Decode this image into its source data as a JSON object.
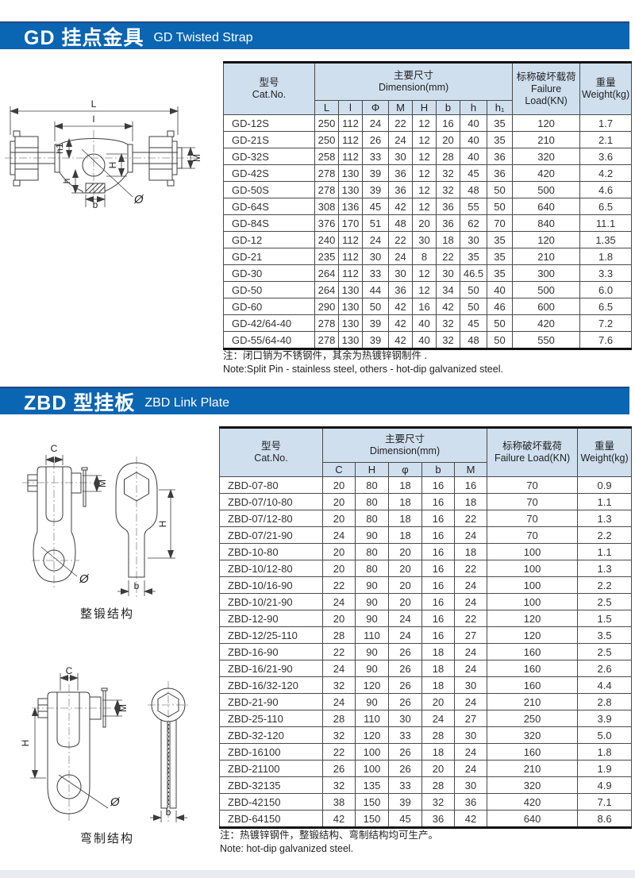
{
  "colors": {
    "banner_blue": "#0a65b2",
    "banner_edge": "#27477e",
    "table_header_fill": "#cfdfee",
    "footer_strip": "#e8ebef"
  },
  "gd": {
    "title_zh": "GD 挂点金具",
    "title_en": "GD Twisted Strap",
    "diagram": {
      "labels": {
        "L": "L",
        "l": "l",
        "h1": "h1",
        "H": "H",
        "h": "h",
        "b": "b",
        "M": "M",
        "phi": "Ø"
      }
    },
    "table": {
      "col_model_zh": "型号",
      "col_model_en": "Cat.No.",
      "col_dim_zh": "主要尺寸",
      "col_dim_en": "Dimension(mm)",
      "dim_cols": [
        "L",
        "l",
        "Φ",
        "M",
        "H",
        "b",
        "h",
        "h₁"
      ],
      "col_load_zh": "标称破坏载荷",
      "col_load_en1": "Failure",
      "col_load_en2": "Load(KN)",
      "col_weight_zh": "重量",
      "col_weight_en": "Weight(kg)",
      "rows": [
        {
          "model": "GD-12S",
          "dims": [
            "250",
            "112",
            "24",
            "22",
            "12",
            "16",
            "40",
            "35"
          ],
          "load": "120",
          "weight": "1.7"
        },
        {
          "model": "GD-21S",
          "dims": [
            "250",
            "112",
            "26",
            "24",
            "12",
            "20",
            "40",
            "35"
          ],
          "load": "210",
          "weight": "2.1"
        },
        {
          "model": "GD-32S",
          "dims": [
            "258",
            "112",
            "33",
            "30",
            "12",
            "28",
            "40",
            "36"
          ],
          "load": "320",
          "weight": "3.6"
        },
        {
          "model": "GD-42S",
          "dims": [
            "278",
            "130",
            "39",
            "36",
            "12",
            "32",
            "45",
            "36"
          ],
          "load": "420",
          "weight": "4.2"
        },
        {
          "model": "GD-50S",
          "dims": [
            "278",
            "130",
            "39",
            "36",
            "12",
            "32",
            "48",
            "50"
          ],
          "load": "500",
          "weight": "4.6"
        },
        {
          "model": "GD-64S",
          "dims": [
            "308",
            "136",
            "45",
            "42",
            "12",
            "36",
            "55",
            "50"
          ],
          "load": "640",
          "weight": "6.5"
        },
        {
          "model": "GD-84S",
          "dims": [
            "376",
            "170",
            "51",
            "48",
            "20",
            "36",
            "62",
            "70"
          ],
          "load": "840",
          "weight": "11.1"
        },
        {
          "model": "GD-12",
          "dims": [
            "240",
            "112",
            "24",
            "22",
            "30",
            "18",
            "30",
            "35"
          ],
          "load": "120",
          "weight": "1.35"
        },
        {
          "model": "GD-21",
          "dims": [
            "235",
            "112",
            "30",
            "24",
            "8",
            "22",
            "35",
            "35"
          ],
          "load": "210",
          "weight": "1.8"
        },
        {
          "model": "GD-30",
          "dims": [
            "264",
            "112",
            "33",
            "30",
            "12",
            "30",
            "46.5",
            "35"
          ],
          "load": "300",
          "weight": "3.3"
        },
        {
          "model": "GD-50",
          "dims": [
            "264",
            "130",
            "44",
            "36",
            "12",
            "34",
            "50",
            "40"
          ],
          "load": "500",
          "weight": "6.0"
        },
        {
          "model": "GD-60",
          "dims": [
            "290",
            "130",
            "50",
            "42",
            "16",
            "42",
            "50",
            "46"
          ],
          "load": "600",
          "weight": "6.5"
        },
        {
          "model": "GD-42/64-40",
          "dims": [
            "278",
            "130",
            "39",
            "42",
            "40",
            "32",
            "45",
            "50"
          ],
          "load": "420",
          "weight": "7.2"
        },
        {
          "model": "GD-55/64-40",
          "dims": [
            "278",
            "130",
            "39",
            "42",
            "40",
            "32",
            "48",
            "50"
          ],
          "load": "550",
          "weight": "7.6"
        }
      ]
    },
    "note_zh": "注：闭口销为不锈钢件，其余为热镀锌钢制件 .",
    "note_en": "Note:Split Pin - stainless steel, others - hot-dip galvanized steel."
  },
  "zbd": {
    "title_zh": "ZBD 型挂板",
    "title_en": "ZBD  Link Plate",
    "diagram1": {
      "caption": "整锻结构",
      "labels": {
        "C": "C",
        "M": "M",
        "H": "H",
        "b": "b",
        "phi": "Ø"
      }
    },
    "diagram2": {
      "caption": "弯制结构",
      "labels": {
        "C": "C",
        "M": "M",
        "H": "H",
        "b": "b",
        "phi": "Ø"
      }
    },
    "table": {
      "col_model_zh": "型号",
      "col_model_en": "Cat.No.",
      "col_dim_zh": "主要尺寸",
      "col_dim_en": "Dimension(mm)",
      "dim_cols": [
        "C",
        "H",
        "φ",
        "b",
        "M"
      ],
      "col_load_zh": "标称破坏载荷",
      "col_load_en": "Failure Load(KN)",
      "col_weight_zh": "重量",
      "col_weight_en": "Weight(kg)",
      "rows": [
        {
          "model": "ZBD-07-80",
          "dims": [
            "20",
            "80",
            "18",
            "16",
            "16"
          ],
          "load": "70",
          "weight": "0.9"
        },
        {
          "model": "ZBD-07/10-80",
          "dims": [
            "20",
            "80",
            "18",
            "16",
            "18"
          ],
          "load": "70",
          "weight": "1.1"
        },
        {
          "model": "ZBD-07/12-80",
          "dims": [
            "20",
            "80",
            "18",
            "16",
            "22"
          ],
          "load": "70",
          "weight": "1.3"
        },
        {
          "model": "ZBD-07/21-90",
          "dims": [
            "24",
            "90",
            "18",
            "16",
            "24"
          ],
          "load": "70",
          "weight": "2.2"
        },
        {
          "model": "ZBD-10-80",
          "dims": [
            "20",
            "80",
            "20",
            "16",
            "18"
          ],
          "load": "100",
          "weight": "1.1"
        },
        {
          "model": "ZBD-10/12-80",
          "dims": [
            "20",
            "80",
            "20",
            "16",
            "22"
          ],
          "load": "100",
          "weight": "1.3"
        },
        {
          "model": "ZBD-10/16-90",
          "dims": [
            "22",
            "90",
            "20",
            "16",
            "24"
          ],
          "load": "100",
          "weight": "2.2"
        },
        {
          "model": "ZBD-10/21-90",
          "dims": [
            "24",
            "90",
            "20",
            "16",
            "24"
          ],
          "load": "100",
          "weight": "2.5"
        },
        {
          "model": "ZBD-12-90",
          "dims": [
            "20",
            "90",
            "24",
            "16",
            "22"
          ],
          "load": "120",
          "weight": "1.5"
        },
        {
          "model": "ZBD-12/25-110",
          "dims": [
            "28",
            "110",
            "24",
            "16",
            "27"
          ],
          "load": "120",
          "weight": "3.5"
        },
        {
          "model": "ZBD-16-90",
          "dims": [
            "22",
            "90",
            "26",
            "18",
            "24"
          ],
          "load": "160",
          "weight": "2.5"
        },
        {
          "model": "ZBD-16/21-90",
          "dims": [
            "24",
            "90",
            "26",
            "18",
            "24"
          ],
          "load": "160",
          "weight": "2.6"
        },
        {
          "model": "ZBD-16/32-120",
          "dims": [
            "32",
            "120",
            "26",
            "18",
            "30"
          ],
          "load": "160",
          "weight": "4.4"
        },
        {
          "model": "ZBD-21-90",
          "dims": [
            "24",
            "90",
            "26",
            "20",
            "24"
          ],
          "load": "210",
          "weight": "2.8"
        },
        {
          "model": "ZBD-25-110",
          "dims": [
            "28",
            "110",
            "30",
            "24",
            "27"
          ],
          "load": "250",
          "weight": "3.9"
        },
        {
          "model": "ZBD-32-120",
          "dims": [
            "32",
            "120",
            "33",
            "28",
            "30"
          ],
          "load": "320",
          "weight": "5.0"
        },
        {
          "model": "ZBD-16100",
          "dims": [
            "22",
            "100",
            "26",
            "18",
            "24"
          ],
          "load": "160",
          "weight": "1.8"
        },
        {
          "model": "ZBD-21100",
          "dims": [
            "26",
            "100",
            "26",
            "20",
            "24"
          ],
          "load": "210",
          "weight": "1.9"
        },
        {
          "model": "ZBD-32135",
          "dims": [
            "32",
            "135",
            "33",
            "28",
            "30"
          ],
          "load": "320",
          "weight": "4.9"
        },
        {
          "model": "ZBD-42150",
          "dims": [
            "38",
            "150",
            "39",
            "32",
            "36"
          ],
          "load": "420",
          "weight": "7.1"
        },
        {
          "model": "ZBD-64150",
          "dims": [
            "42",
            "150",
            "45",
            "36",
            "42"
          ],
          "load": "640",
          "weight": "8.6"
        }
      ]
    },
    "note_zh": "注：热镀锌钢件，整锻结构、弯制结构均可生产。",
    "note_en": "Note: hot-dip galvanized steel."
  }
}
